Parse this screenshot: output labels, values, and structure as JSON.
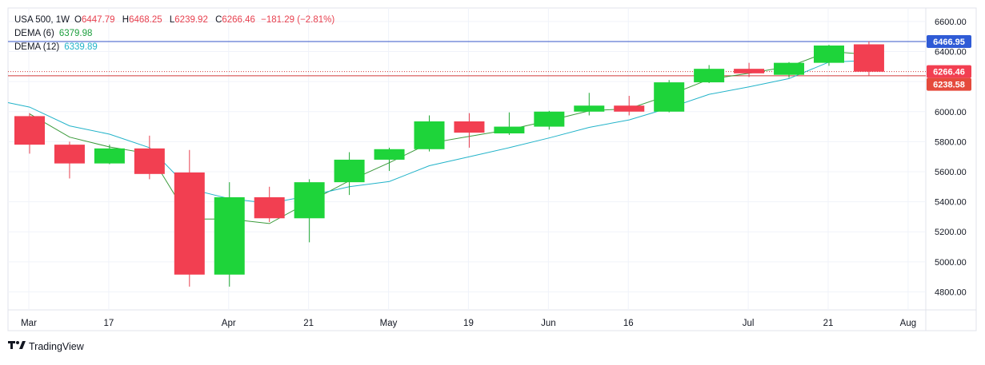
{
  "legend": {
    "symbol": "USA 500, 1W",
    "open_label": "O",
    "open": "6447.79",
    "high_label": "H",
    "high": "6468.25",
    "low_label": "L",
    "low": "6239.92",
    "close_label": "C",
    "close": "6266.46",
    "change": "−181.29 (−2.81%)",
    "dema6_label": "DEMA (6)",
    "dema6_value": "6379.98",
    "dema12_label": "DEMA (12)",
    "dema12_value": "6339.89"
  },
  "brand": {
    "name": "TradingView"
  },
  "colors": {
    "up": "#1ed43a",
    "down": "#f23f51",
    "up_wick": "#1ea832",
    "down_wick": "#e8414f",
    "dema6": "#3a9a3a",
    "dema12": "#22b3c9",
    "high_line": "#3656c8",
    "close_line": "#d23a3a",
    "high_badge": "#2f5bd6",
    "close_badge": "#f23f51",
    "last_badge": "#e54a3c"
  },
  "chart_data": {
    "type": "candlestick",
    "interval": "1W",
    "y_axis_labels": [
      "6600.00",
      "6400.00",
      "6200.00",
      "6000.00",
      "5800.00",
      "5600.00",
      "5400.00",
      "5200.00",
      "5000.00",
      "4800.00"
    ],
    "ylim": [
      4680,
      6690
    ],
    "x_tick_labels": [
      "Mar",
      "17",
      "Apr",
      "21",
      "May",
      "19",
      "Jun",
      "16",
      "Jul",
      "21",
      "Aug"
    ],
    "candles": [
      {
        "o": 5970,
        "h": 5990,
        "l": 5720,
        "c": 5780
      },
      {
        "o": 5780,
        "h": 5800,
        "l": 5555,
        "c": 5655
      },
      {
        "o": 5655,
        "h": 5780,
        "l": 5650,
        "c": 5755
      },
      {
        "o": 5755,
        "h": 5840,
        "l": 5550,
        "c": 5585
      },
      {
        "o": 5595,
        "h": 5745,
        "l": 4835,
        "c": 4915
      },
      {
        "o": 4915,
        "h": 5530,
        "l": 4835,
        "c": 5430
      },
      {
        "o": 5430,
        "h": 5500,
        "l": 5265,
        "c": 5290
      },
      {
        "o": 5290,
        "h": 5550,
        "l": 5130,
        "c": 5530
      },
      {
        "o": 5530,
        "h": 5730,
        "l": 5445,
        "c": 5680
      },
      {
        "o": 5680,
        "h": 5760,
        "l": 5605,
        "c": 5750
      },
      {
        "o": 5750,
        "h": 5975,
        "l": 5735,
        "c": 5935
      },
      {
        "o": 5935,
        "h": 5990,
        "l": 5760,
        "c": 5860
      },
      {
        "o": 5855,
        "h": 5995,
        "l": 5845,
        "c": 5900
      },
      {
        "o": 5900,
        "h": 6005,
        "l": 5880,
        "c": 6000
      },
      {
        "o": 6000,
        "h": 6125,
        "l": 5975,
        "c": 6040
      },
      {
        "o": 6040,
        "h": 6105,
        "l": 5975,
        "c": 6000
      },
      {
        "o": 6000,
        "h": 6210,
        "l": 5995,
        "c": 6195
      },
      {
        "o": 6195,
        "h": 6310,
        "l": 6190,
        "c": 6285
      },
      {
        "o": 6285,
        "h": 6325,
        "l": 6230,
        "c": 6255
      },
      {
        "o": 6245,
        "h": 6330,
        "l": 6225,
        "c": 6325
      },
      {
        "o": 6325,
        "h": 6445,
        "l": 6305,
        "c": 6440
      },
      {
        "o": 6448,
        "h": 6468,
        "l": 6240,
        "c": 6266
      }
    ],
    "series": [
      {
        "name": "DEMA (6)",
        "values": [
          5985,
          5830,
          5765,
          5720,
          5285,
          5285,
          5255,
          5400,
          5540,
          5660,
          5790,
          5835,
          5880,
          5940,
          6005,
          6020,
          6110,
          6215,
          6255,
          6300,
          6400,
          6380
        ]
      },
      {
        "name": "DEMA (12)",
        "values": [
          6030,
          5905,
          5850,
          5760,
          5485,
          5420,
          5390,
          5440,
          5500,
          5535,
          5640,
          5700,
          5760,
          5825,
          5895,
          5945,
          6025,
          6115,
          6165,
          6220,
          6330,
          6340
        ]
      }
    ],
    "price_badges": [
      {
        "kind": "high",
        "value": "6466.95",
        "price": 6466.95
      },
      {
        "kind": "close",
        "value": "6266.46",
        "price": 6266.46
      },
      {
        "kind": "last",
        "value": "6238.58",
        "price": 6238.58
      }
    ]
  }
}
